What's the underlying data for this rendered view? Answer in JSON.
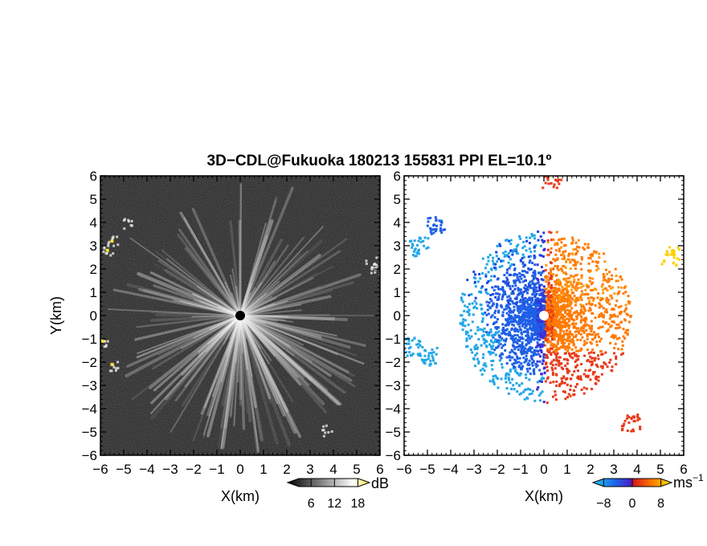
{
  "title": "3D−CDL@Fukuoka 180213 155831 PPI EL=10.1º",
  "chart_data": [
    {
      "type": "heatmap",
      "panel": "reflectivity",
      "xlabel": "X(km)",
      "ylabel": "Y(km)",
      "xlim": [
        -6,
        6
      ],
      "ylim": [
        -6,
        6
      ],
      "xticks": [
        "−6",
        "−5",
        "−4",
        "−3",
        "−2",
        "−1",
        "0",
        "1",
        "2",
        "3",
        "4",
        "5",
        "6"
      ],
      "yticks": [
        "6",
        "5",
        "4",
        "3",
        "2",
        "1",
        "0",
        "−1",
        "−2",
        "−3",
        "−4",
        "−5",
        "−6"
      ],
      "colorbar": {
        "ticks": [
          "6",
          "12",
          "18"
        ],
        "unit": "dB",
        "range": [
          0,
          21
        ]
      },
      "colors": {
        "background": "#1c1c1c",
        "ray": "#e8e8e8",
        "hot": "#f2e03a",
        "center": "#000000"
      }
    },
    {
      "type": "heatmap",
      "panel": "doppler_velocity",
      "xlabel": "X(km)",
      "ylabel": "",
      "xlim": [
        -6,
        6
      ],
      "ylim": [
        -6,
        6
      ],
      "xticks": [
        "−6",
        "−5",
        "−4",
        "−3",
        "−2",
        "−1",
        "0",
        "1",
        "2",
        "3",
        "4",
        "5",
        "6"
      ],
      "yticks": [
        "6",
        "5",
        "4",
        "3",
        "2",
        "1",
        "0",
        "−1",
        "−2",
        "−3",
        "−4",
        "−5",
        "−6"
      ],
      "colorbar": {
        "ticks": [
          "−8",
          "0",
          "8"
        ],
        "unit": "ms",
        "unit_exp": "−1",
        "range": [
          -11,
          11
        ]
      },
      "colors": {
        "neg_far": "#22a6e8",
        "neg": "#1e5fe6",
        "neg_core": "#3b2fd6",
        "pos": "#ff7a00",
        "pos_core": "#e83a1a",
        "pos_far": "#ffd000"
      }
    }
  ]
}
